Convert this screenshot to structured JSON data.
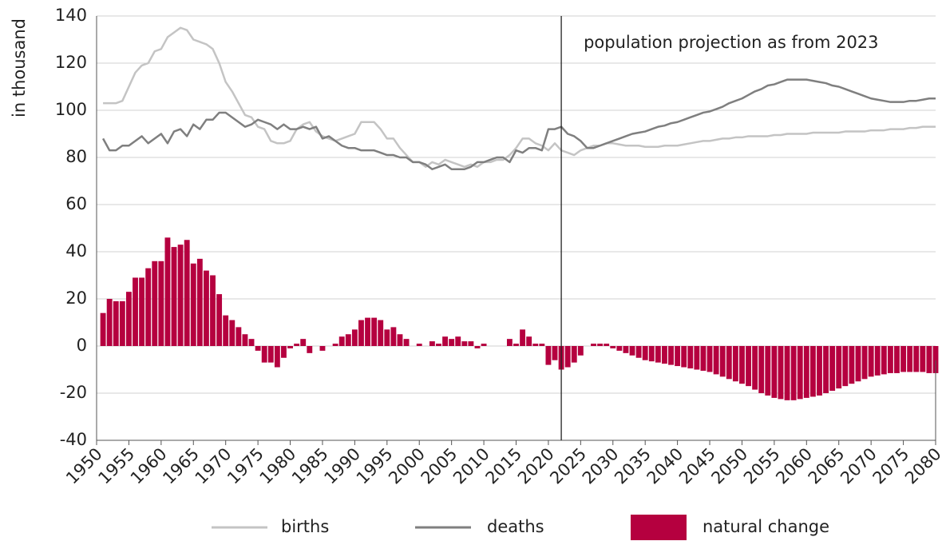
{
  "chart_data": {
    "type": "combo",
    "y_axis_label": "in thousand",
    "annotation": {
      "text": "population projection as from 2023",
      "x": 2022
    },
    "x": [
      1951,
      1952,
      1953,
      1954,
      1955,
      1956,
      1957,
      1958,
      1959,
      1960,
      1961,
      1962,
      1963,
      1964,
      1965,
      1966,
      1967,
      1968,
      1969,
      1970,
      1971,
      1972,
      1973,
      1974,
      1975,
      1976,
      1977,
      1978,
      1979,
      1980,
      1981,
      1982,
      1983,
      1984,
      1985,
      1986,
      1987,
      1988,
      1989,
      1990,
      1991,
      1992,
      1993,
      1994,
      1995,
      1996,
      1997,
      1998,
      1999,
      2000,
      2001,
      2002,
      2003,
      2004,
      2005,
      2006,
      2007,
      2008,
      2009,
      2010,
      2011,
      2012,
      2013,
      2014,
      2015,
      2016,
      2017,
      2018,
      2019,
      2020,
      2021,
      2022,
      2023,
      2024,
      2025,
      2026,
      2027,
      2028,
      2029,
      2030,
      2031,
      2032,
      2033,
      2034,
      2035,
      2036,
      2037,
      2038,
      2039,
      2040,
      2041,
      2042,
      2043,
      2044,
      2045,
      2046,
      2047,
      2048,
      2049,
      2050,
      2051,
      2052,
      2053,
      2054,
      2055,
      2056,
      2057,
      2058,
      2059,
      2060,
      2061,
      2062,
      2063,
      2064,
      2065,
      2066,
      2067,
      2068,
      2069,
      2070,
      2071,
      2072,
      2073,
      2074,
      2075,
      2076,
      2077,
      2078,
      2079,
      2080
    ],
    "series": [
      {
        "name": "births",
        "type": "line",
        "color": "#c4c4c4",
        "values": [
          103,
          103,
          103,
          104,
          110,
          116,
          119,
          120,
          125,
          126,
          131,
          133,
          135,
          134,
          130,
          129,
          128,
          126,
          120,
          112,
          108,
          103,
          98,
          97,
          93,
          92,
          87,
          86,
          86,
          87,
          92,
          94,
          95,
          91,
          89,
          88,
          87,
          88,
          89,
          90,
          95,
          95,
          95,
          92,
          88,
          88,
          84,
          81,
          78,
          78,
          76,
          78,
          77,
          79,
          78,
          77,
          76,
          77,
          76,
          78,
          78,
          79,
          79,
          81,
          84,
          88,
          88,
          86,
          85,
          83,
          86,
          83,
          82,
          81,
          83,
          84,
          85,
          85,
          86,
          86,
          85.5,
          85,
          85,
          85,
          84.5,
          84.5,
          84.5,
          85,
          85,
          85,
          85.5,
          86,
          86.5,
          87,
          87,
          87.5,
          88,
          88,
          88.5,
          88.5,
          89,
          89,
          89,
          89,
          89.5,
          89.5,
          90,
          90,
          90,
          90,
          90.5,
          90.5,
          90.5,
          90.5,
          90.5,
          91,
          91,
          91,
          91,
          91.5,
          91.5,
          91.5,
          92,
          92,
          92,
          92.5,
          92.5,
          93,
          93,
          93
        ]
      },
      {
        "name": "deaths",
        "type": "line",
        "color": "#7f7f7f",
        "values": [
          88,
          83,
          83,
          85,
          85,
          87,
          89,
          86,
          88,
          90,
          86,
          91,
          92,
          89,
          94,
          92,
          96,
          96,
          99,
          99,
          97,
          95,
          93,
          94,
          96,
          95,
          94,
          92,
          94,
          92,
          92,
          93,
          92,
          93,
          88,
          89,
          87,
          85,
          84,
          84,
          83,
          83,
          83,
          82,
          81,
          81,
          80,
          80,
          78,
          78,
          77,
          75,
          76,
          77,
          75,
          75,
          75,
          76,
          78,
          78,
          79,
          80,
          80,
          78,
          83,
          82,
          84,
          84,
          83,
          92,
          92,
          93,
          90,
          89,
          87,
          84,
          84,
          85,
          86,
          87,
          88,
          89,
          90,
          90.5,
          91,
          92,
          93,
          93.5,
          94.5,
          95,
          96,
          97,
          98,
          99,
          99.5,
          100.5,
          101.5,
          103,
          104,
          105,
          106.5,
          108,
          109,
          110.5,
          111,
          112,
          113,
          113,
          113,
          113,
          112.5,
          112,
          111.5,
          110.5,
          110,
          109,
          108,
          107,
          106,
          105,
          104.5,
          104,
          103.5,
          103.5,
          103.5,
          104,
          104,
          104.5,
          105,
          105
        ]
      },
      {
        "name": "natural change",
        "type": "bar",
        "color": "#b5003f",
        "values": [
          14,
          20,
          19,
          19,
          23,
          29,
          29,
          33,
          36,
          36,
          46,
          42,
          43,
          45,
          35,
          37,
          32,
          30,
          22,
          13,
          11,
          8,
          5,
          3,
          -2,
          -7,
          -7,
          -9,
          -5,
          -1,
          1,
          3,
          -3,
          0,
          -2,
          0,
          1,
          4,
          5,
          7,
          11,
          12,
          12,
          11,
          7,
          8,
          5,
          3,
          0,
          1,
          0,
          2,
          1,
          4,
          3,
          4,
          2,
          2,
          -1,
          1,
          0,
          0,
          0,
          3,
          1,
          7,
          4,
          1,
          1,
          -8,
          -6,
          -10,
          -9,
          -7,
          -4,
          0,
          1,
          1,
          1,
          -1,
          -2,
          -3,
          -4,
          -5,
          -6,
          -6.5,
          -7,
          -7.5,
          -8,
          -8.5,
          -9,
          -9.5,
          -10,
          -10.5,
          -11,
          -12,
          -13,
          -14,
          -15,
          -16,
          -17,
          -18.5,
          -20,
          -21,
          -22,
          -22.5,
          -23,
          -23,
          -22.5,
          -22,
          -21.5,
          -21,
          -20,
          -19,
          -18,
          -17,
          -16,
          -15,
          -14,
          -13,
          -12.5,
          -12,
          -11.5,
          -11.5,
          -11,
          -11,
          -11,
          -11,
          -11.5,
          -11.5
        ]
      }
    ],
    "xlim": [
      1950,
      2080
    ],
    "xticks": [
      1950,
      1955,
      1960,
      1965,
      1970,
      1975,
      1980,
      1985,
      1990,
      1995,
      2000,
      2005,
      2010,
      2015,
      2020,
      2025,
      2030,
      2035,
      2040,
      2045,
      2050,
      2055,
      2060,
      2065,
      2070,
      2075,
      2080
    ],
    "ylim": [
      -40,
      140
    ],
    "yticks": [
      -40,
      -20,
      0,
      20,
      40,
      60,
      80,
      100,
      120,
      140
    ],
    "grid": true
  }
}
